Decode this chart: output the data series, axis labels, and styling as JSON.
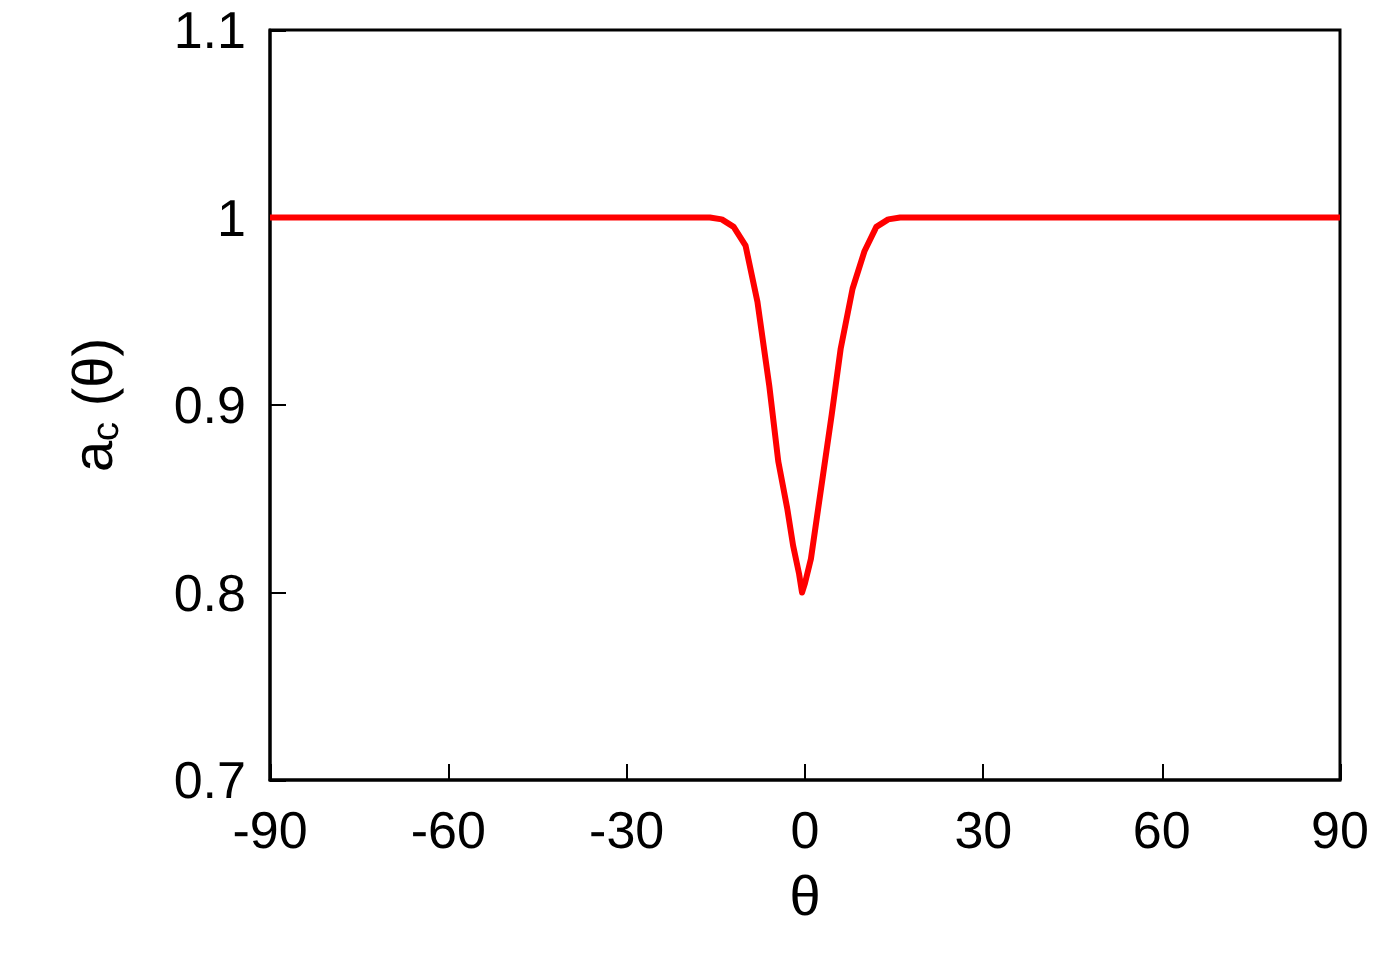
{
  "chart_data": {
    "type": "line",
    "xlabel": "θ",
    "ylabel": "a$_{c}$ (θ)",
    "x": [
      -90,
      -30,
      -16,
      -14,
      -12,
      -10,
      -8,
      -6,
      -4.5,
      -3,
      -2,
      -1,
      -0.5,
      0,
      1,
      2,
      3,
      4.5,
      6,
      8,
      10,
      12,
      14,
      16,
      30,
      90
    ],
    "series": [
      {
        "color": "#ff0000",
        "values": [
          1,
          1,
          1,
          0.999,
          0.995,
          0.985,
          0.955,
          0.91,
          0.87,
          0.845,
          0.825,
          0.81,
          0.8,
          0.805,
          0.818,
          0.84,
          0.862,
          0.895,
          0.93,
          0.962,
          0.982,
          0.995,
          0.999,
          1,
          1,
          1
        ]
      }
    ],
    "xlim": [
      -90,
      90
    ],
    "xticks": [
      -90,
      -60,
      -30,
      0,
      30,
      60,
      90
    ],
    "ylim": [
      0.7,
      1.1
    ],
    "yticks": [
      0.7,
      0.8,
      0.9,
      1,
      1.1
    ],
    "grid": false,
    "marker": "none",
    "line_style": "solid"
  }
}
